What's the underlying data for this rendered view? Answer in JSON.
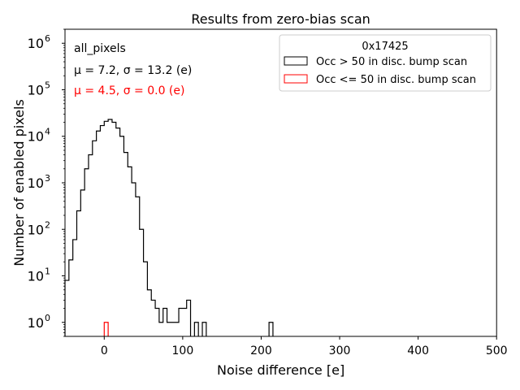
{
  "chart_data": {
    "type": "histogram",
    "title": "Results from zero-bias scan",
    "xlabel": "Noise difference [e]",
    "ylabel": "Number of enabled pixels",
    "xlim": [
      -50,
      500
    ],
    "ylim_log": [
      0.5,
      2000000
    ],
    "yscale": "log",
    "x_ticks": [
      {
        "value": 0,
        "label": "0"
      },
      {
        "value": 100,
        "label": "100"
      },
      {
        "value": 200,
        "label": "200"
      },
      {
        "value": 300,
        "label": "300"
      },
      {
        "value": 400,
        "label": "400"
      },
      {
        "value": 500,
        "label": "500"
      }
    ],
    "y_ticks": [
      {
        "value": 1,
        "base": "10",
        "exp": "0"
      },
      {
        "value": 10,
        "base": "10",
        "exp": "1"
      },
      {
        "value": 100,
        "base": "10",
        "exp": "2"
      },
      {
        "value": 1000,
        "base": "10",
        "exp": "3"
      },
      {
        "value": 10000,
        "base": "10",
        "exp": "4"
      },
      {
        "value": 100000,
        "base": "10",
        "exp": "5"
      },
      {
        "value": 1000000,
        "base": "10",
        "exp": "6"
      }
    ],
    "bin_width": 5,
    "legend": {
      "title": "0x17425",
      "position": "top-right",
      "entries": [
        {
          "label": "Occ > 50 in disc. bump scan",
          "color": "#000000"
        },
        {
          "label": "Occ <= 50 in disc. bump scan",
          "color": "#ff0000"
        }
      ]
    },
    "annotations": [
      {
        "text": "all_pixels",
        "color": "#000000"
      },
      {
        "text": "μ = 7.2, σ = 13.2 (e)",
        "color": "#000000"
      },
      {
        "text": "μ = 4.5, σ = 0.0 (e)",
        "color": "#ff0000"
      }
    ],
    "series": [
      {
        "name": "Occ > 50 in disc. bump scan",
        "color": "#000000",
        "bins": [
          [
            -50,
            8
          ],
          [
            -45,
            22
          ],
          [
            -40,
            60
          ],
          [
            -35,
            250
          ],
          [
            -30,
            700
          ],
          [
            -25,
            2000
          ],
          [
            -20,
            4000
          ],
          [
            -15,
            8000
          ],
          [
            -10,
            13000
          ],
          [
            -5,
            17000
          ],
          [
            0,
            21000
          ],
          [
            5,
            23000
          ],
          [
            10,
            20000
          ],
          [
            15,
            15000
          ],
          [
            20,
            10000
          ],
          [
            25,
            4500
          ],
          [
            30,
            2200
          ],
          [
            35,
            1000
          ],
          [
            40,
            500
          ],
          [
            45,
            100
          ],
          [
            50,
            20
          ],
          [
            55,
            5
          ],
          [
            60,
            3
          ],
          [
            65,
            2
          ],
          [
            70,
            1
          ],
          [
            75,
            2
          ],
          [
            80,
            1
          ],
          [
            85,
            1
          ],
          [
            90,
            1
          ],
          [
            95,
            2
          ],
          [
            100,
            2
          ],
          [
            105,
            3
          ],
          [
            110,
            0
          ],
          [
            115,
            1
          ],
          [
            120,
            0
          ],
          [
            125,
            1
          ],
          [
            210,
            1
          ]
        ]
      },
      {
        "name": "Occ <= 50 in disc. bump scan",
        "color": "#ff0000",
        "bins": [
          [
            0,
            1
          ]
        ]
      }
    ]
  }
}
